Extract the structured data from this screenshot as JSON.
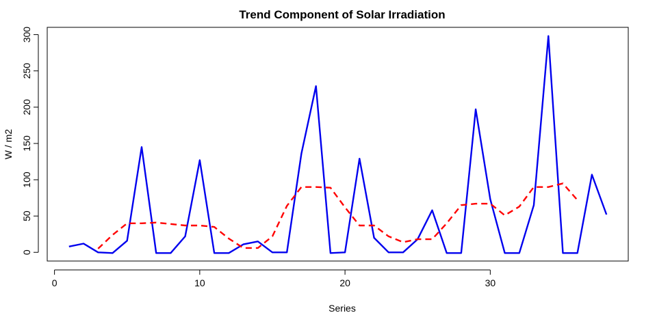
{
  "chart_data": {
    "type": "line",
    "title": "Trend Component of Solar Irradiation",
    "xlabel": "Series",
    "ylabel": "W / m2",
    "xlim": [
      -0.5,
      39.5
    ],
    "ylim": [
      -12,
      310
    ],
    "xticks": [
      0,
      10,
      20,
      30
    ],
    "yticks": [
      0,
      50,
      100,
      150,
      200,
      250,
      300
    ],
    "grid": false,
    "series": [
      {
        "name": "",
        "color": "#0000ee",
        "dash": "solid",
        "x": [
          1,
          2,
          3,
          4,
          5,
          6,
          7,
          8,
          9,
          10,
          11,
          12,
          13,
          14,
          15,
          16,
          17,
          18,
          19,
          20,
          21,
          22,
          23,
          24,
          25,
          26,
          27,
          28,
          29,
          30,
          31,
          32,
          33,
          34,
          35,
          36,
          37,
          38
        ],
        "values": [
          8,
          12,
          0,
          -1,
          16,
          145,
          -1,
          -1,
          22,
          127,
          -1,
          -1,
          11,
          15,
          0,
          0,
          136,
          229,
          -1,
          0,
          129,
          20,
          0,
          0,
          18,
          58,
          -1,
          -1,
          197,
          73,
          -1,
          -1,
          65,
          298,
          -1,
          -1,
          107,
          52
        ]
      },
      {
        "name": "",
        "color": "#ff0000",
        "dash": "dashed",
        "x": [
          3,
          4,
          5,
          6,
          7,
          8,
          9,
          10,
          11,
          12,
          13,
          14,
          15,
          16,
          17,
          18,
          19,
          20,
          21,
          22,
          23,
          24,
          25,
          26,
          27,
          28,
          29,
          30,
          31,
          32,
          33,
          34,
          35,
          36
        ],
        "values": [
          5,
          24,
          40,
          40,
          41,
          39,
          37,
          37,
          35,
          19,
          6,
          6,
          22,
          64,
          90,
          90,
          89,
          62,
          37,
          37,
          22,
          14,
          18,
          18,
          40,
          65,
          67,
          67,
          51,
          63,
          90,
          90,
          95,
          72
        ]
      }
    ]
  }
}
